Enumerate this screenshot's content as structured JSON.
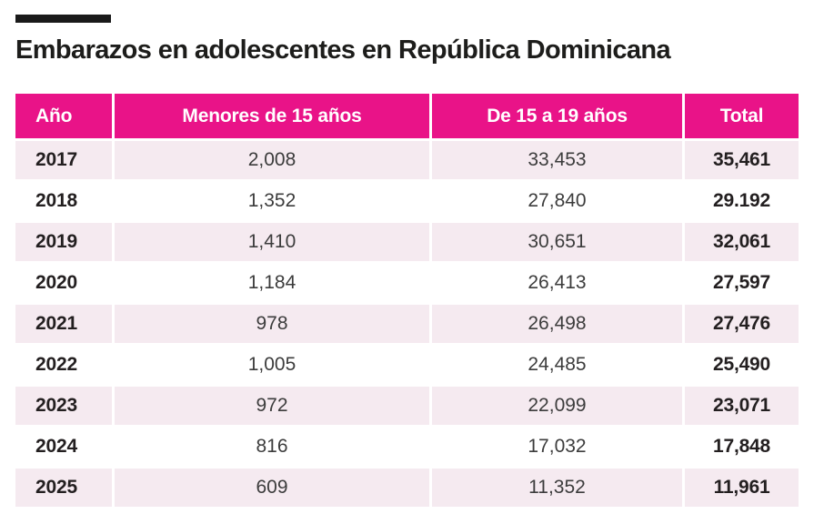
{
  "title": "Embarazos en adolescentes en República Dominicana",
  "colors": {
    "accent": "#E91388",
    "row_alt": "#F5EAF0",
    "top_bar": "#1A1A1A",
    "header_text": "#FFFFFF",
    "text_bold": "#231F20",
    "text_regular": "#3C3C3C"
  },
  "table": {
    "columns": [
      "Año",
      "Menores de 15 años",
      "De 15 a 19 años",
      "Total"
    ]
  },
  "chart_data": {
    "type": "table",
    "title": "Embarazos en adolescentes en República Dominicana",
    "columns": [
      "Año",
      "Menores de 15 años",
      "De 15 a 19 años",
      "Total"
    ],
    "rows": [
      [
        "2017",
        "2,008",
        "33,453",
        "35,461"
      ],
      [
        "2018",
        "1,352",
        "27,840",
        "29.192"
      ],
      [
        "2019",
        "1,410",
        "30,651",
        "32,061"
      ],
      [
        "2020",
        "1,184",
        "26,413",
        "27,597"
      ],
      [
        "2021",
        "978",
        "26,498",
        "27,476"
      ],
      [
        "2022",
        "1,005",
        "24,485",
        "25,490"
      ],
      [
        "2023",
        "972",
        "22,099",
        "23,071"
      ],
      [
        "2024",
        "816",
        "17,032",
        "17,848"
      ],
      [
        "2025",
        "609",
        "11,352",
        "11,961"
      ]
    ]
  }
}
